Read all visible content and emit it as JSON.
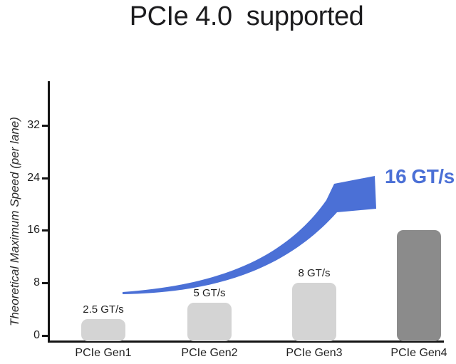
{
  "title": "PCIe 4.0  supported",
  "colors": {
    "accent_blue": "#4b70d6",
    "bar_light": "#d4d4d4",
    "bar_dark": "#8b8b8b",
    "axis": "#141414",
    "text": "#1c1c1e",
    "background": "#ffffff"
  },
  "chart_data": {
    "type": "bar",
    "title": "PCIe 4.0  supported",
    "categories": [
      "PCIe Gen1",
      "PCIe Gen2",
      "PCIe Gen3",
      "PCIe Gen4"
    ],
    "values": [
      2.5,
      5,
      8,
      16
    ],
    "unit": "GT/s",
    "bar_labels": [
      "2.5 GT/s",
      "5 GT/s",
      "8 GT/s",
      ""
    ],
    "bar_colors": [
      "#d4d4d4",
      "#d4d4d4",
      "#d4d4d4",
      "#8b8b8b"
    ],
    "ylabel": "Theoretical Maximum Speed (per lane)",
    "xlabel": "",
    "yticks": [
      0,
      8,
      16,
      24,
      32
    ],
    "ylim": [
      0,
      38
    ],
    "grid": false,
    "legend": false,
    "annotation": {
      "text": "16 GT/s",
      "color": "#4b70d6"
    },
    "arrow": {
      "style": "curved-growth-swoosh",
      "color": "#4b70d6"
    }
  }
}
